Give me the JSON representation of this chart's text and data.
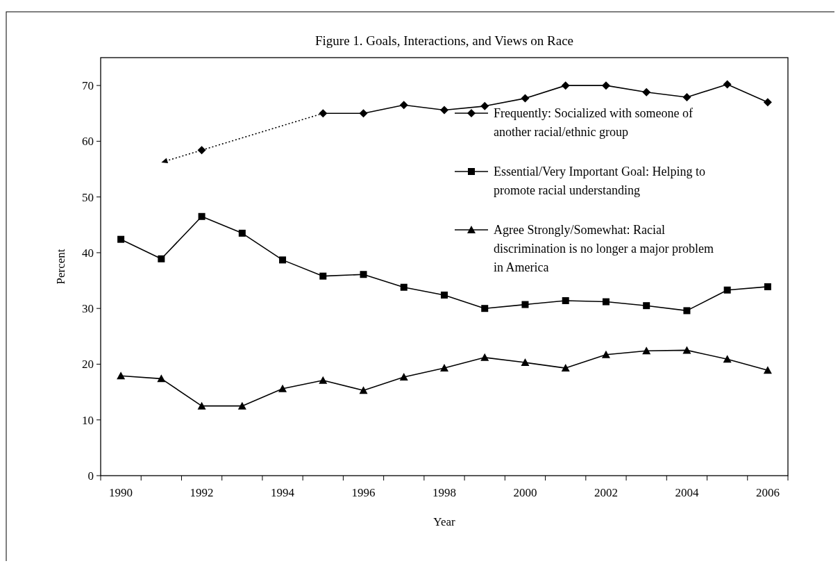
{
  "chart_data": {
    "type": "line",
    "title": "Figure 1. Goals, Interactions, and Views on Race",
    "xlabel": "Year",
    "ylabel": "Percent",
    "categories": [
      "1990",
      null,
      "1992",
      null,
      "1994",
      null,
      "1996",
      null,
      "1998",
      null,
      "2000",
      null,
      "2002",
      null,
      "2004",
      null,
      "2006"
    ],
    "ylim": [
      0,
      75
    ],
    "yticks": [
      0,
      10,
      20,
      30,
      40,
      50,
      60,
      70
    ],
    "grid": false,
    "legend": "top right",
    "line_style": "solid",
    "series": [
      {
        "name": "Frequently: Socialized with someone of another racial/ethnic group",
        "color": "#000000",
        "marker": "diamond",
        "values": [
          null,
          null,
          58.4,
          null,
          null,
          65,
          65,
          66.5,
          65.6,
          66.3,
          67.7,
          70,
          70,
          68.8,
          67.9,
          70.2,
          67
        ]
      },
      {
        "name": "Essential/Very Important Goal: Helping to promote racial understanding",
        "color": "#000000",
        "marker": "square",
        "values": [
          42.4,
          38.9,
          46.5,
          43.5,
          38.7,
          35.8,
          36.1,
          33.8,
          32.4,
          30,
          30.7,
          31.4,
          31.2,
          30.5,
          29.6,
          33.3,
          33.9
        ]
      },
      {
        "name": "Agree Strongly/Somewhat: Racial discrimination is no longer a major problem in America",
        "color": "#000000",
        "marker": "triangle",
        "values": [
          17.9,
          17.4,
          12.5,
          12.5,
          15.6,
          17.1,
          15.3,
          17.7,
          19.3,
          21.2,
          20.3,
          19.3,
          21.7,
          22.4,
          22.5,
          20.9,
          18.9
        ]
      }
    ]
  }
}
